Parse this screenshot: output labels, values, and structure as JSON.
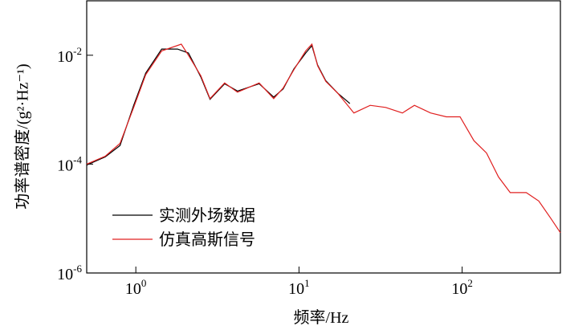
{
  "chart_data": {
    "type": "line",
    "x_label": "频率/Hz",
    "y_label": "功率谱密度/(g²·Hz⁻¹)",
    "x_log": true,
    "y_log": true,
    "xlim": [
      0.5,
      400
    ],
    "ylim": [
      1e-06,
      0.1
    ],
    "xticks": [
      {
        "value": 1,
        "label": "10",
        "exponent": "0"
      },
      {
        "value": 10,
        "label": "10",
        "exponent": "1"
      },
      {
        "value": 100,
        "label": "10",
        "exponent": "2"
      }
    ],
    "yticks": [
      {
        "value": 1e-06,
        "label": "10",
        "exponent": "-6"
      },
      {
        "value": 0.0001,
        "label": "10",
        "exponent": "-4"
      },
      {
        "value": 0.01,
        "label": "10",
        "exponent": "-2"
      }
    ],
    "legend_position": "lower left",
    "series": [
      {
        "name": "实测外场数据",
        "color": "#000000",
        "x": [
          0.5,
          0.65,
          0.8,
          0.97,
          1.15,
          1.44,
          1.8,
          2.1,
          2.5,
          2.85,
          3.5,
          4.2,
          5.7,
          7,
          8,
          9.3,
          11,
          12,
          13,
          14.6,
          17.3,
          20.5
        ],
        "values": [
          9.6e-05,
          0.000136,
          0.00022,
          0.0012,
          0.0047,
          0.013,
          0.013,
          0.011,
          0.004,
          0.00155,
          0.003,
          0.0022,
          0.003,
          0.0017,
          0.0024,
          0.0056,
          0.011,
          0.015,
          0.0066,
          0.0034,
          0.002,
          0.0013
        ]
      },
      {
        "name": "仿真高斯信号",
        "color": "#e02020",
        "x": [
          0.5,
          0.65,
          0.8,
          0.97,
          1.15,
          1.44,
          1.9,
          2.1,
          2.5,
          2.85,
          3.5,
          4.2,
          5.7,
          7,
          8,
          9.3,
          11,
          12,
          13,
          14.6,
          17.3,
          21.7,
          27.3,
          34,
          43,
          51,
          64,
          80,
          97,
          118,
          141,
          167,
          197,
          247,
          295,
          350,
          400
        ],
        "values": [
          0.0001,
          0.00014,
          0.00024,
          0.0011,
          0.0044,
          0.012,
          0.016,
          0.01,
          0.0042,
          0.0016,
          0.0031,
          0.0021,
          0.0031,
          0.0016,
          0.0025,
          0.0054,
          0.012,
          0.016,
          0.0064,
          0.0033,
          0.002,
          0.00087,
          0.0012,
          0.0011,
          0.00087,
          0.0012,
          0.00087,
          0.00074,
          0.00074,
          0.00027,
          0.00016,
          5.8e-05,
          3e-05,
          3e-05,
          2.1e-05,
          1e-05,
          5.5e-06
        ]
      }
    ]
  }
}
